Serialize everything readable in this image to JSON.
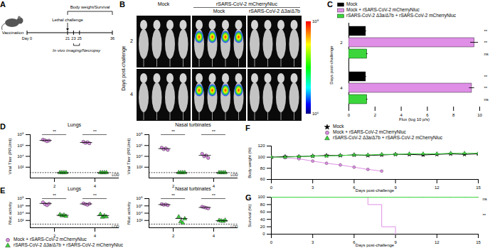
{
  "panel_a": {
    "panel": "A",
    "day_label": "Day",
    "timeline": [
      0,
      21,
      23,
      25,
      36
    ],
    "vaccination": "Vaccination",
    "challenge": "Lethal challenge",
    "monitoring": "Body weight/Survival",
    "imaging": "In vivo imaging/Necropsy"
  },
  "panel_b": {
    "panel": "B",
    "first_column": "Mock",
    "header": "rSARS-CoV-2 mCherryNluc",
    "columns": [
      "Mock",
      "rSARS-CoV-2 Δ3a/Δ7b"
    ],
    "signal": [
      false,
      true,
      false
    ],
    "rows": [
      "2",
      "4"
    ],
    "row_label": "Days post-challenge",
    "colorbar": {
      "range": [
        1000000,
        100000000
      ],
      "ticks": [
        {
          "value": 100000000,
          "label": "10⁸"
        },
        {
          "value": 1000000,
          "label": "10⁶"
        }
      ]
    }
  },
  "chart_data": [
    {
      "panel": "C",
      "type": "bar",
      "orientation": "horizontal",
      "legend": "top",
      "xlabel": "Flux (log 10 p/s)",
      "ylabel": "Days post-challenge",
      "categories": [
        "2",
        "4"
      ],
      "xlim": [
        0,
        10
      ],
      "xticks": [
        0,
        2,
        4,
        6,
        8,
        10
      ],
      "series": [
        {
          "name": "Mock",
          "color": "#000000",
          "values": [
            1.3,
            1.3
          ],
          "errors": [
            0.05,
            0.05
          ]
        },
        {
          "name": "Mock + rSARS-CoV-2 mCherryNluc",
          "color": "#df8fe6",
          "values": [
            9.6,
            9.4
          ],
          "errors": [
            0.3,
            0.2
          ]
        },
        {
          "name": "rSARS-CoV-2 Δ3a/Δ7b + rSARS-CoV-2 mCherryNluc",
          "color": "#3cd63c",
          "values": [
            1.4,
            1.4
          ],
          "errors": [
            0.05,
            0.05
          ]
        }
      ],
      "annotations": [
        [
          "**",
          "**",
          "ns"
        ],
        [
          "**",
          "**",
          "ns"
        ]
      ]
    },
    {
      "panel": "D",
      "type": "scatter",
      "title": "Lungs",
      "ylabel": "Viral Titer (PFU/ml)",
      "categories": [
        "2",
        "4"
      ],
      "log": "y",
      "ylim": [
        1,
        100000000
      ],
      "yticks": [
        {
          "value": 100,
          "label": "10²"
        },
        {
          "value": 10000,
          "label": "10⁴"
        },
        {
          "value": 1000000,
          "label": "10⁶"
        },
        {
          "value": 100000000,
          "label": "10⁸"
        }
      ],
      "reference_line": {
        "value": 10,
        "label": "LOD"
      },
      "annotations": [
        "**",
        "**"
      ],
      "series": [
        {
          "name": "Mock + rSARS-CoV-2 mCherryNluc",
          "color": "#df8fe6",
          "marker": "circle",
          "values": [
            [
              12000000,
              9000000,
              6000000,
              8000000
            ],
            [
              5000000,
              3000000,
              4000000,
              2500000
            ]
          ],
          "mean": [
            8750000,
            3625000
          ],
          "errors": [
            1250000,
            550000
          ]
        },
        {
          "name": "rSARS-CoV-2 Δ3a/Δ7b + rSARS-CoV-2 mCherryNluc",
          "color": "#3cd63c",
          "marker": "triangle",
          "values": [
            [
              10,
              10,
              10,
              10
            ],
            [
              10,
              10,
              10,
              10
            ]
          ],
          "mean": [
            10,
            10
          ],
          "errors": [
            0,
            0
          ]
        }
      ]
    },
    {
      "type": "scatter",
      "title": "Nasal turbinates",
      "ylabel": "Viral Titer (PFU/ml)",
      "categories": [
        "2",
        "4"
      ],
      "log": "y",
      "ylim": [
        1,
        100000000
      ],
      "yticks": [
        {
          "value": 100,
          "label": "10²"
        },
        {
          "value": 10000,
          "label": "10⁴"
        },
        {
          "value": 1000000,
          "label": "10⁶"
        },
        {
          "value": 100000000,
          "label": "10⁸"
        }
      ],
      "reference_line": {
        "value": 10,
        "label": "LOD"
      },
      "annotations": [
        "**",
        "**"
      ],
      "series": [
        {
          "name": "Mock + rSARS-CoV-2 mCherryNluc",
          "color": "#df8fe6",
          "marker": "circle",
          "values": [
            [
              400000,
              200000,
              300000,
              150000
            ],
            [
              30000,
              10000,
              15000,
              5000
            ]
          ],
          "mean": [
            262500,
            15000
          ],
          "errors": [
            55000,
            5400
          ]
        },
        {
          "name": "rSARS-CoV-2 Δ3a/Δ7b + rSARS-CoV-2 mCherryNluc",
          "color": "#3cd63c",
          "marker": "triangle",
          "values": [
            [
              10,
              10,
              10,
              10
            ],
            [
              10,
              10,
              10,
              10
            ]
          ],
          "mean": [
            10,
            10
          ],
          "errors": [
            0,
            0
          ]
        }
      ]
    },
    {
      "panel": "E",
      "type": "scatter",
      "legend": "bottom",
      "title": "Lungs",
      "ylabel": "Nluc activity",
      "categories": [
        "2",
        "4"
      ],
      "log": "y",
      "ylim": [
        1,
        100000000
      ],
      "yticks": [
        {
          "value": 100,
          "label": "10²"
        },
        {
          "value": 10000,
          "label": "10⁴"
        },
        {
          "value": 1000000,
          "label": "10⁶"
        },
        {
          "value": 100000000,
          "label": "10⁸"
        }
      ],
      "reference_line": {
        "value": 10,
        "label": "LOD"
      },
      "annotations": [
        "**",
        "**"
      ],
      "series": [
        {
          "name": "Mock + rSARS-CoV-2 mCherryNluc",
          "color": "#df8fe6",
          "marker": "circle",
          "values": [
            [
              10000000,
              3000000,
              1500000,
              4000000
            ],
            [
              5000000,
              3000000,
              2000000,
              4000000
            ]
          ],
          "mean": [
            4625000,
            3500000
          ],
          "errors": [
            1860000,
            650000
          ]
        },
        {
          "name": "rSARS-CoV-2 Δ3a/Δ7b + rSARS-CoV-2 mCherryNluc",
          "color": "#3cd63c",
          "marker": "triangle",
          "values": [
            [
              4000,
              2000,
              3000,
              1500
            ],
            [
              5000,
              800,
              2000,
              1000
            ]
          ],
          "mean": [
            2625,
            2200
          ],
          "errors": [
            550,
            970
          ]
        }
      ]
    },
    {
      "type": "scatter",
      "title": "Nasal turbinates",
      "ylabel": "Nluc activity",
      "categories": [
        "2",
        "4"
      ],
      "log": "y",
      "ylim": [
        1,
        100000000
      ],
      "yticks": [
        {
          "value": 100,
          "label": "10²"
        },
        {
          "value": 10000,
          "label": "10⁴"
        },
        {
          "value": 1000000,
          "label": "10⁶"
        },
        {
          "value": 100000000,
          "label": "10⁸"
        }
      ],
      "reference_line": {
        "value": 10,
        "label": "LOD"
      },
      "annotations": [
        "**",
        "**"
      ],
      "series": [
        {
          "name": "Mock + rSARS-CoV-2 mCherryNluc",
          "color": "#df8fe6",
          "marker": "circle",
          "values": [
            [
              3000000,
              2000000,
              2500000,
              1500000
            ],
            [
              600000,
              400000,
              300000,
              200000
            ]
          ],
          "mean": [
            2250000,
            375000
          ],
          "errors": [
            320000,
            85000
          ]
        },
        {
          "name": "rSARS-CoV-2 Δ3a/Δ7b + rSARS-CoV-2 mCherryNluc",
          "color": "#3cd63c",
          "marker": "triangle",
          "values": [
            [
              1000,
              50,
              20,
              300
            ],
            [
              100,
              80,
              60,
              120
            ]
          ],
          "mean": [
            342.5,
            90
          ],
          "errors": [
            228,
            13
          ]
        }
      ]
    },
    {
      "panel": "F",
      "type": "line",
      "legend": "top",
      "xlabel": "Days post-challenge",
      "ylabel": "Body weight (%)",
      "x": [
        0,
        1,
        2,
        3,
        4,
        5,
        6,
        7,
        8,
        9,
        10,
        11,
        12,
        13,
        14,
        15
      ],
      "xlim": [
        0,
        15
      ],
      "xticks": [
        0,
        3,
        6,
        9,
        12,
        15
      ],
      "ylim": [
        60,
        120
      ],
      "yticks": [
        60,
        80,
        100,
        120
      ],
      "series": [
        {
          "name": "Mock",
          "color": "#000000",
          "marker": "star",
          "values": [
            100,
            101,
            101,
            102,
            103,
            103,
            104,
            103,
            104,
            105,
            105,
            104,
            105,
            106,
            105,
            106
          ],
          "errors": [
            1,
            1.5,
            1.5,
            2,
            2,
            2,
            2,
            2,
            2,
            2,
            2,
            2,
            2,
            2,
            2,
            2
          ]
        },
        {
          "name": "Mock + rSARS-CoV-2 mCherryNluc",
          "color": "#df8fe6",
          "marker": "circle",
          "values": [
            100,
            99,
            97,
            93,
            89,
            86,
            82,
            78,
            75,
            null,
            null,
            null,
            null,
            null,
            null,
            null
          ],
          "errors": [
            1,
            1.5,
            2,
            2.5,
            3,
            3,
            3,
            2.5,
            2,
            null,
            null,
            null,
            null,
            null,
            null,
            null
          ]
        },
        {
          "name": "rSARS-CoV-2 Δ3a/Δ7b + rSARS-CoV-2 mCherryNluc",
          "color": "#3cd63c",
          "marker": "triangle",
          "values": [
            100,
            100,
            101,
            102,
            102,
            103,
            104,
            104,
            105,
            105,
            106,
            106,
            106,
            107,
            107,
            107
          ],
          "errors": [
            1,
            1.5,
            2,
            2,
            2,
            2,
            2,
            2,
            2,
            2,
            2,
            2,
            2,
            2,
            2,
            2
          ]
        }
      ]
    },
    {
      "panel": "G",
      "type": "step",
      "xlabel": "Days post-challenge",
      "ylabel": "Survival (%)",
      "x": [
        0,
        1,
        2,
        3,
        4,
        5,
        6,
        7,
        8,
        9,
        10,
        11,
        12,
        13,
        14,
        15
      ],
      "xlim": [
        0,
        15
      ],
      "xticks": [
        0,
        3,
        6,
        9,
        12,
        15
      ],
      "ylim": [
        0,
        100
      ],
      "yticks": [
        0,
        20,
        40,
        60,
        80,
        100
      ],
      "annotations": [
        "**",
        "ns"
      ],
      "series": [
        {
          "name": "Mock",
          "color": "#000000",
          "values": [
            100,
            100,
            100,
            100,
            100,
            100,
            100,
            100,
            100,
            100,
            100,
            100,
            100,
            100,
            100,
            100
          ]
        },
        {
          "name": "Mock + rSARS-CoV-2 mCherryNluc",
          "color": "#df8fe6",
          "values": [
            100,
            100,
            100,
            100,
            100,
            100,
            100,
            80,
            20,
            0,
            null,
            null,
            null,
            null,
            null,
            null
          ]
        },
        {
          "name": "rSARS-CoV-2 Δ3a/Δ7b + rSARS-CoV-2 mCherryNluc",
          "color": "#3cd63c",
          "values": [
            100,
            100,
            100,
            100,
            100,
            100,
            100,
            100,
            100,
            100,
            100,
            100,
            100,
            100,
            100,
            100
          ]
        }
      ]
    }
  ]
}
